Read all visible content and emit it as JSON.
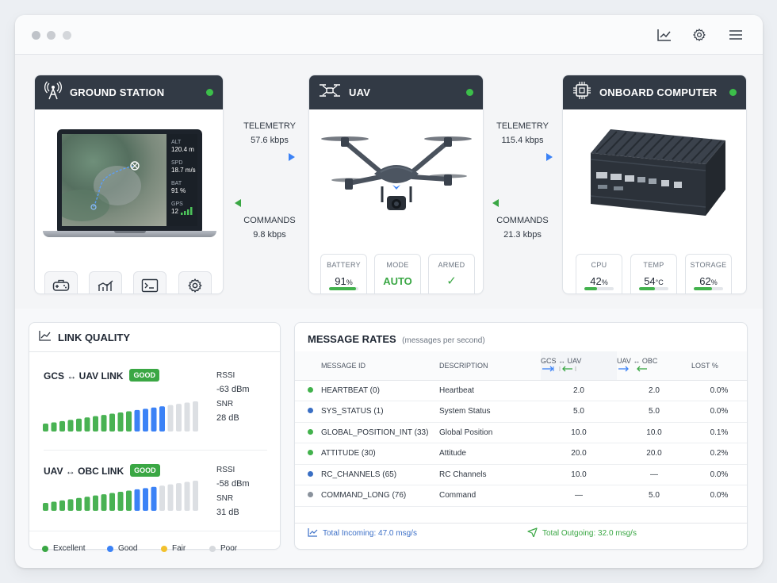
{
  "nodes": {
    "ground_station": {
      "title": "GROUND STATION"
    },
    "uav": {
      "title": "UAV"
    },
    "onboard": {
      "title": "ONBOARD COMPUTER"
    }
  },
  "gcs_screen": {
    "alt_label": "ALT",
    "alt_value": "120.4 m",
    "spd_label": "SPD",
    "spd_value": "18.7 m/s",
    "bat_label": "BAT",
    "bat_value": "91 %",
    "gps_label": "GPS",
    "gps_value": "12"
  },
  "links": {
    "left_telemetry_label": "TELEMETRY",
    "left_telemetry_value": "57.6 kbps",
    "left_commands_label": "COMMANDS",
    "left_commands_value": "9.8 kbps",
    "right_telemetry_label": "TELEMETRY",
    "right_telemetry_value": "115.4 kbps",
    "right_commands_label": "COMMANDS",
    "right_commands_value": "21.3 kbps"
  },
  "uav_stats": [
    {
      "label": "BATTERY",
      "value": "91",
      "unit": "%",
      "level": 0.91
    },
    {
      "label": "MODE",
      "value": "AUTO"
    },
    {
      "label": "ARMED",
      "value": "✓"
    }
  ],
  "obc_stats": [
    {
      "label": "CPU",
      "value": "42",
      "unit": "%",
      "level": 0.42
    },
    {
      "label": "TEMP",
      "value": "54",
      "unit": "°C",
      "level": 0.54
    },
    {
      "label": "STORAGE",
      "value": "62",
      "unit": "%",
      "level": 0.62
    }
  ],
  "link_quality": {
    "title": "LINK QUALITY",
    "gcs_uav": {
      "name": "GCS ↔ UAV LINK",
      "badge": "GOOD",
      "rssi_label": "RSSI",
      "rssi": "-63 dBm",
      "snr_label": "SNR",
      "snr": "28 dB"
    },
    "uav_obc": {
      "name": "UAV ↔ OBC LINK",
      "badge": "GOOD",
      "rssi_label": "RSSI",
      "rssi": "-58 dBm",
      "snr_label": "SNR",
      "snr": "31 dB"
    },
    "legend": {
      "excellent": "Excellent",
      "good": "Good",
      "fair": "Fair",
      "poor": "Poor"
    }
  },
  "message_rates": {
    "title": "MESSAGE RATES",
    "subtitle": "(messages per second)",
    "headers": {
      "id": "MESSAGE ID",
      "desc": "DESCRIPTION",
      "gcs": "GCS ↔ UAV",
      "uav": "UAV ↔ OBC",
      "lost": "LOST %"
    },
    "rows": [
      {
        "id": "HEARTBEAT (0)",
        "desc": "Heartbeat",
        "gcs": "2.0",
        "uav": "2.0",
        "lost": "0.0%",
        "color": "#42b24c"
      },
      {
        "id": "SYS_STATUS (1)",
        "desc": "System Status",
        "gcs": "5.0",
        "uav": "5.0",
        "lost": "0.0%",
        "color": "#3a6fc4"
      },
      {
        "id": "GLOBAL_POSITION_INT (33)",
        "desc": "Global Position",
        "gcs": "10.0",
        "uav": "10.0",
        "lost": "0.1%",
        "color": "#42b24c"
      },
      {
        "id": "ATTITUDE (30)",
        "desc": "Attitude",
        "gcs": "20.0",
        "uav": "20.0",
        "lost": "0.2%",
        "color": "#42b24c"
      },
      {
        "id": "RC_CHANNELS (65)",
        "desc": "RC Channels",
        "gcs": "10.0",
        "uav": "—",
        "lost": "0.0%",
        "color": "#3a6fc4"
      },
      {
        "id": "COMMAND_LONG (76)",
        "desc": "Command",
        "gcs": "—",
        "uav": "5.0",
        "lost": "0.0%",
        "color": "#8a929c"
      }
    ],
    "total_incoming": "Total Incoming: 47.0 msg/s",
    "total_outgoing": "Total Outgoing: 32.0 msg/s"
  }
}
